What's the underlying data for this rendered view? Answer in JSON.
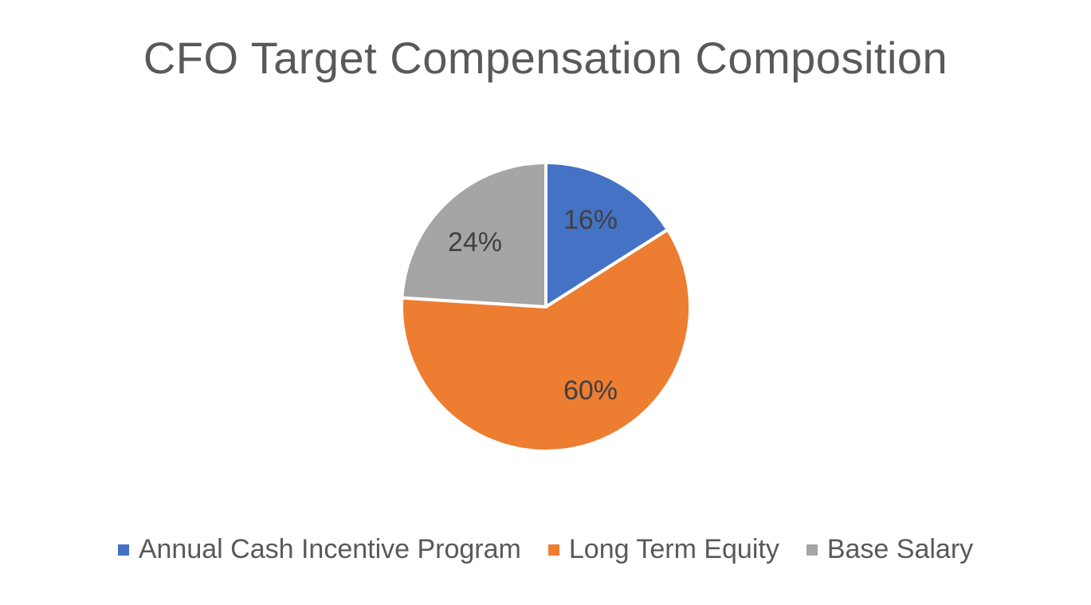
{
  "chart_data": {
    "type": "pie",
    "title": "CFO Target Compensation Composition",
    "categories": [
      "Annual Cash Incentive Program",
      "Long Term Equity",
      "Base Salary"
    ],
    "values": [
      16,
      60,
      24
    ],
    "labels": [
      "16%",
      "60%",
      "24%"
    ],
    "colors": [
      "#4472C4",
      "#ED7D31",
      "#A5A5A5"
    ],
    "start_angle": "12 o'clock, clockwise",
    "legend_position": "bottom",
    "xlabel": "",
    "ylabel": ""
  },
  "title": "CFO Target Compensation Composition",
  "legend": [
    {
      "label": "Annual Cash Incentive Program",
      "color": "#4472C4"
    },
    {
      "label": "Long Term Equity",
      "color": "#ED7D31"
    },
    {
      "label": "Base Salary",
      "color": "#A5A5A5"
    }
  ]
}
